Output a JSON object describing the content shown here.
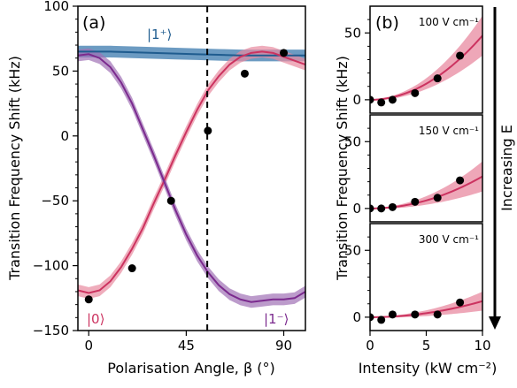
{
  "chart_data": [
    {
      "panel": "(a)",
      "type": "line",
      "xlabel": "Polarisation Angle, β (°)",
      "ylabel": "Transition Frequency Shift (kHz)",
      "xlim": [
        -5,
        100
      ],
      "ylim": [
        -150,
        100
      ],
      "xticks": [
        0,
        45,
        90
      ],
      "xtick_labels": [
        "0",
        "45",
        "90"
      ],
      "yticks": [
        -150,
        -100,
        -50,
        0,
        50,
        100
      ],
      "ytick_labels": [
        "−150",
        "−100",
        "−50",
        "0",
        "50",
        "100"
      ],
      "vline_x": 54.7,
      "series": [
        {
          "name": "|1⁺⟩",
          "color": "#1f5c8f",
          "band_color": "#2d70a8",
          "x": [
            -5,
            0,
            10,
            20,
            30,
            40,
            50,
            60,
            70,
            80,
            90,
            100
          ],
          "y": [
            65,
            65,
            65,
            64.5,
            64,
            63.5,
            63,
            62.5,
            62,
            62,
            62,
            62
          ],
          "band": 4.5
        },
        {
          "name": "|0⟩",
          "color": "#cc3360",
          "band_color": "#e88aa0",
          "x": [
            -5,
            0,
            5,
            10,
            15,
            20,
            25,
            30,
            35,
            40,
            45,
            50,
            55,
            60,
            65,
            70,
            75,
            80,
            85,
            90,
            95,
            100
          ],
          "y": [
            -119,
            -121,
            -119,
            -112,
            -101,
            -87,
            -71,
            -52,
            -34,
            -15,
            3,
            20,
            35,
            46,
            55,
            61,
            64,
            65,
            64,
            61,
            58,
            55
          ],
          "band": 4.5
        },
        {
          "name": "|1⁻⟩",
          "color": "#7b2a8e",
          "band_color": "#a070b5",
          "x": [
            -5,
            0,
            5,
            10,
            15,
            20,
            25,
            30,
            35,
            40,
            45,
            50,
            55,
            60,
            65,
            70,
            75,
            80,
            85,
            90,
            95,
            100
          ],
          "y": [
            62,
            63,
            60,
            53,
            41,
            25,
            5,
            -15,
            -36,
            -57,
            -76,
            -92,
            -105,
            -115,
            -122,
            -126,
            -128,
            -127,
            -126,
            -126,
            -125,
            -120
          ],
          "band": 4.5
        }
      ],
      "points": {
        "x": [
          0,
          20,
          38,
          55,
          72,
          90
        ],
        "y": [
          -126,
          -102,
          -50,
          4,
          48,
          64
        ]
      }
    },
    {
      "panel": "(b)",
      "type": "line",
      "xlabel": "Intensity (kW cm⁻²)",
      "ylabel": "Transition Frequency Shift (kHz)",
      "side_label": "Increasing E",
      "xlim": [
        0,
        10
      ],
      "ylim": [
        -10,
        70
      ],
      "xticks": [
        0,
        5,
        10
      ],
      "xtick_labels": [
        "0",
        "5",
        "10"
      ],
      "yticks": [
        0,
        50
      ],
      "ytick_labels": [
        "0",
        "50"
      ],
      "subplots": [
        {
          "label": "100 V cm⁻¹",
          "coef": 0.48,
          "band_frac": 0.3,
          "points": {
            "x": [
              0,
              1,
              2,
              4,
              6,
              8
            ],
            "y": [
              0,
              -2,
              0,
              5,
              16,
              33
            ]
          }
        },
        {
          "label": "150 V cm⁻¹",
          "coef": 0.24,
          "band_frac": 0.45,
          "points": {
            "x": [
              0,
              1,
              2,
              4,
              6,
              8
            ],
            "y": [
              0,
              0,
              1,
              5,
              8,
              21
            ]
          }
        },
        {
          "label": "300 V cm⁻¹",
          "coef": 0.12,
          "band_frac": 0.55,
          "points": {
            "x": [
              0,
              1,
              2,
              4,
              6,
              8
            ],
            "y": [
              0,
              -2,
              2,
              2,
              2,
              11
            ]
          }
        }
      ],
      "fit_color": "#cc3360",
      "band_color": "#e88aa0"
    }
  ]
}
